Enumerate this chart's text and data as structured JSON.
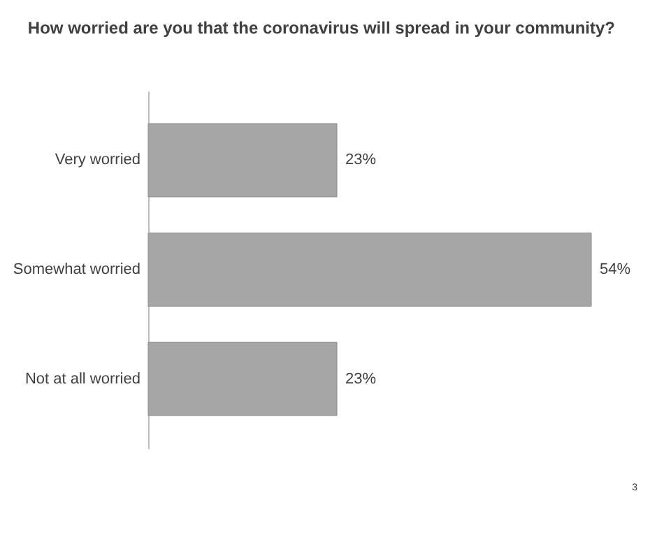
{
  "chart_data": {
    "type": "bar",
    "orientation": "horizontal",
    "title": "How worried are you that the coronavirus will spread in your community?",
    "categories": [
      "Very worried",
      "Somewhat worried",
      "Not at all worried"
    ],
    "values": [
      23,
      54,
      23
    ],
    "value_labels": [
      "23%",
      "54%",
      "23%"
    ],
    "color": "#a6a6a6",
    "annotations": [
      "3"
    ]
  }
}
